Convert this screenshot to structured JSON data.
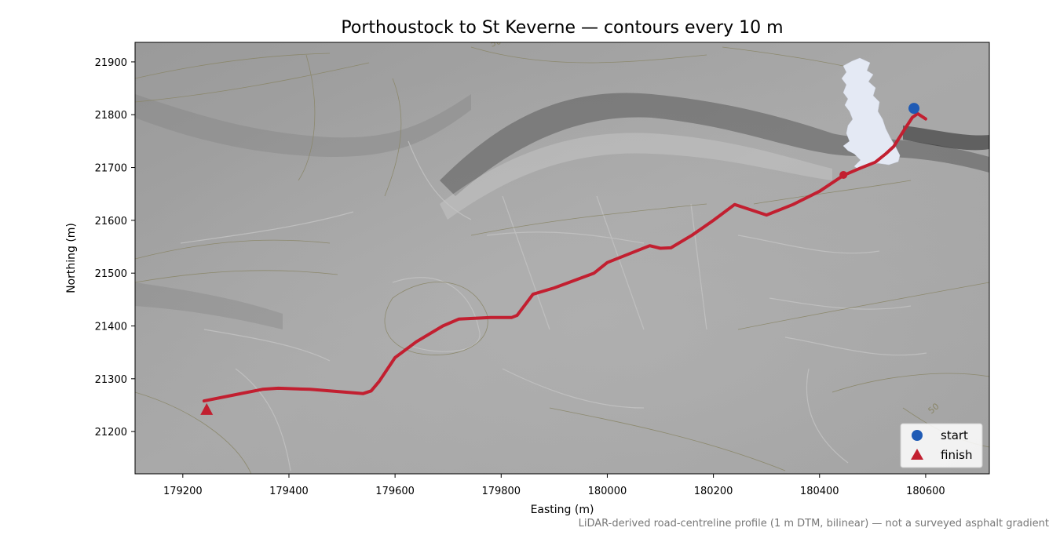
{
  "figure": {
    "title": "Porthoustock to St Keverne — contours every 10 m",
    "footnote": "LiDAR-derived road-centreline profile (1 m DTM, bilinear) — not a surveyed asphalt gradient"
  },
  "chart_data": {
    "type": "map",
    "xlabel": "Easting (m)",
    "ylabel": "Northing (m)",
    "xlim": [
      179110,
      180720
    ],
    "ylim": [
      21120,
      21937
    ],
    "xticks": [
      179200,
      179400,
      179600,
      179800,
      180000,
      180200,
      180400,
      180600
    ],
    "yticks": [
      21200,
      21300,
      21400,
      21500,
      21600,
      21700,
      21800,
      21900
    ],
    "contour_interval_m": 10,
    "contour_labels": [
      "50",
      "50"
    ],
    "route": {
      "color": "#c21f30",
      "points": [
        [
          180600,
          21792
        ],
        [
          180585,
          21802
        ],
        [
          180575,
          21795
        ],
        [
          180560,
          21772
        ],
        [
          180540,
          21740
        ],
        [
          180525,
          21726
        ],
        [
          180505,
          21710
        ],
        [
          180475,
          21698
        ],
        [
          180445,
          21685
        ],
        [
          180400,
          21655
        ],
        [
          180350,
          21630
        ],
        [
          180300,
          21610
        ],
        [
          180270,
          21620
        ],
        [
          180240,
          21630
        ],
        [
          180200,
          21600
        ],
        [
          180160,
          21572
        ],
        [
          180120,
          21548
        ],
        [
          180100,
          21547
        ],
        [
          180080,
          21552
        ],
        [
          180000,
          21520
        ],
        [
          179975,
          21500
        ],
        [
          179900,
          21472
        ],
        [
          179860,
          21460
        ],
        [
          179845,
          21440
        ],
        [
          179830,
          21420
        ],
        [
          179820,
          21416
        ],
        [
          179780,
          21416
        ],
        [
          179720,
          21413
        ],
        [
          179690,
          21400
        ],
        [
          179640,
          21370
        ],
        [
          179600,
          21340
        ],
        [
          179570,
          21295
        ],
        [
          179555,
          21277
        ],
        [
          179540,
          21272
        ],
        [
          179440,
          21280
        ],
        [
          179380,
          21282
        ],
        [
          179350,
          21280
        ],
        [
          179300,
          21270
        ],
        [
          179240,
          21258
        ]
      ]
    },
    "start_marker": {
      "x": 180578,
      "y": 21812,
      "color": "#1f5bb5"
    },
    "finish_marker": {
      "x": 179245,
      "y": 21242,
      "color": "#c21f30"
    },
    "mid_marker": {
      "x": 180445,
      "y": 21686,
      "color": "#c21f30"
    },
    "legend": {
      "placement": "lower right",
      "entries": [
        {
          "label": "start",
          "marker": "circle",
          "color": "#1f5bb5"
        },
        {
          "label": "finish",
          "marker": "triangle",
          "color": "#c21f30"
        }
      ]
    },
    "inset": {
      "description": "Great Britain locator",
      "fill": "#e4e9f4"
    },
    "grid": false
  }
}
